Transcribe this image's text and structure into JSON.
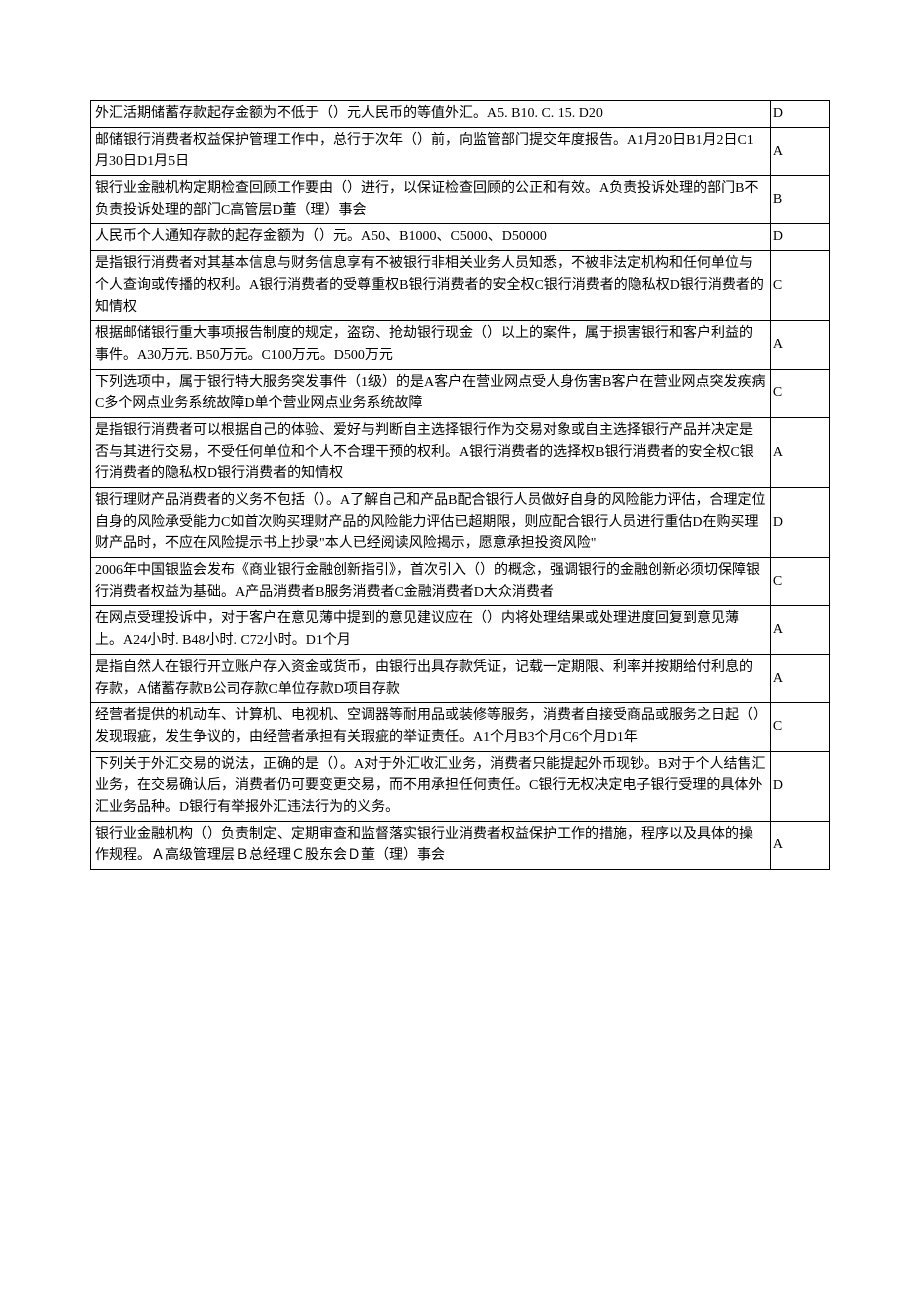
{
  "rows": [
    {
      "q": "外汇活期储蓄存款起存金额为不低于（）元人民币的等值外汇。A5. B10. C. 15. D20",
      "a": "D"
    },
    {
      "q": "邮储银行消费者权益保护管理工作中，总行于次年（）前，向监管部门提交年度报告。A1月20日B1月2日C1月30日D1月5日",
      "a": "A"
    },
    {
      "q": "银行业金融机构定期检查回顾工作要由（）进行，以保证检查回顾的公正和有效。A负责投诉处理的部门B不负责投诉处理的部门C高管层D董（理）事会",
      "a": "B"
    },
    {
      "q": "人民币个人通知存款的起存金额为（）元。A50、B1000、C5000、D50000",
      "a": "D"
    },
    {
      "q": "是指银行消费者对其基本信息与财务信息享有不被银行非相关业务人员知悉，不被非法定机构和任何单位与个人查询或传播的权利。A银行消费者的受尊重权B银行消费者的安全权C银行消费者的隐私权D银行消费者的知情权",
      "a": "C"
    },
    {
      "q": "根据邮储银行重大事项报告制度的规定，盗窃、抢劫银行现金（）以上的案件，属于损害银行和客户利益的事件。A30万元. B50万元。C100万元。D500万元",
      "a": "A"
    },
    {
      "q": "下列选项中，属于银行特大服务突发事件（1级）的是A客户在营业网点受人身伤害B客户在营业网点突发疾病C多个网点业务系统故障D单个营业网点业务系统故障",
      "a": "C"
    },
    {
      "q": "是指银行消费者可以根据自己的体验、爱好与判断自主选择银行作为交易对象或自主选择银行产品并决定是否与其进行交易，不受任何单位和个人不合理干预的权利。A银行消费者的选择权B银行消费者的安全权C银行消费者的隐私权D银行消费者的知情权",
      "a": "A"
    },
    {
      "q": "银行理财产品消费者的义务不包括（）。A了解自己和产品B配合银行人员做好自身的风险能力评估，合理定位自身的风险承受能力C如首次购买理财产品的风险能力评估已超期限，则应配合银行人员进行重估D在购买理财产品时，不应在风险提示书上抄录\"本人已经阅读风险揭示，愿意承担投资风险\"",
      "a": "D"
    },
    {
      "q": "2006年中国银监会发布《商业银行金融创新指引》，首次引入（）的概念，强调银行的金融创新必须切保障银行消费者权益为基础。A产品消费者B服务消费者C金融消费者D大众消费者",
      "a": "C"
    },
    {
      "q": "在网点受理投诉中，对于客户在意见薄中提到的意见建议应在（）内将处理结果或处理进度回复到意见薄上。A24小时. B48小时. C72小时。D1个月",
      "a": "A"
    },
    {
      "q": "是指自然人在银行开立账户存入资金或货币，由银行出具存款凭证，记载一定期限、利率并按期给付利息的存款，A储蓄存款B公司存款C单位存款D项目存款",
      "a": "A"
    },
    {
      "q": "经营者提供的机动车、计算机、电视机、空调器等耐用品或装修等服务，消费者自接受商品或服务之日起（）发现瑕疵，发生争议的，由经营者承担有关瑕疵的举证责任。A1个月B3个月C6个月D1年",
      "a": "C"
    },
    {
      "q": "下列关于外汇交易的说法，正确的是（）。A对于外汇收汇业务，消费者只能提起外币现钞。B对于个人结售汇业务，在交易确认后，消费者仍可要变更交易，而不用承担任何责任。C银行无权决定电子银行受理的具体外汇业务品种。D银行有举报外汇违法行为的义务。",
      "a": "D"
    },
    {
      "q": "银行业金融机构（）负责制定、定期审查和监督落实银行业消费者权益保护工作的措施，程序以及具体的操作规程。Ａ高级管理层Ｂ总经理Ｃ股东会Ｄ董（理）事会",
      "a": "A"
    }
  ]
}
